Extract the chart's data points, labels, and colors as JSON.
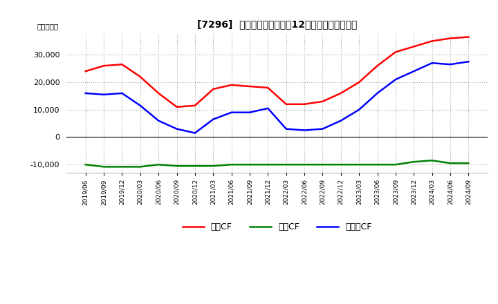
{
  "title": "[7296]  キャッシュフローの12か月移動合計の推移",
  "ylabel": "（百万円）",
  "ylim": [
    -13000,
    38000
  ],
  "yticks": [
    -10000,
    0,
    10000,
    20000,
    30000
  ],
  "legend_labels": [
    "営業CF",
    "投資CF",
    "フリーCF"
  ],
  "line_colors": [
    "#ff0000",
    "#008000",
    "#0000ff"
  ],
  "background_color": "#ffffff",
  "plot_bg_color": "#ffffff",
  "dates": [
    "2019/06",
    "2019/09",
    "2019/12",
    "2020/03",
    "2020/06",
    "2020/09",
    "2020/12",
    "2021/03",
    "2021/06",
    "2021/09",
    "2021/12",
    "2022/03",
    "2022/06",
    "2022/09",
    "2022/12",
    "2023/03",
    "2023/06",
    "2023/09",
    "2023/12",
    "2024/03",
    "2024/06",
    "2024/09"
  ],
  "operating_cf": [
    24000,
    26000,
    26500,
    22000,
    16000,
    11000,
    11500,
    17500,
    19000,
    18500,
    18000,
    12000,
    12000,
    13000,
    16000,
    20000,
    26000,
    31000,
    33000,
    35000,
    36000,
    36500
  ],
  "investing_cf": [
    -10000,
    -10800,
    -10800,
    -10800,
    -10000,
    -10500,
    -10500,
    -10500,
    -10000,
    -10000,
    -10000,
    -10000,
    -10000,
    -10000,
    -10000,
    -10000,
    -10000,
    -10000,
    -9000,
    -8500,
    -9500,
    -9500
  ],
  "free_cf": [
    16000,
    15500,
    16000,
    11500,
    6000,
    3000,
    1500,
    6500,
    9000,
    9000,
    10500,
    3000,
    2500,
    3000,
    6000,
    10000,
    16000,
    21000,
    24000,
    27000,
    26500,
    27500
  ]
}
